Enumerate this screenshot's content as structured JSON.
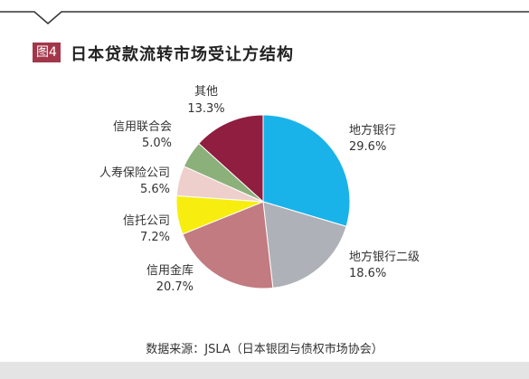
{
  "figure": {
    "badge": "图4",
    "title": "日本贷款流转市场受让方结构",
    "source": "数据来源：JSLA（日本银团与债权市场协会）"
  },
  "chart_data": {
    "type": "pie",
    "title": "日本贷款流转市场受让方结构",
    "unit": "%",
    "slices": [
      {
        "label": "地方银行",
        "value": 29.6,
        "pct_text": "29.6%",
        "color": "#19b3ea"
      },
      {
        "label": "地方银行二级",
        "value": 18.6,
        "pct_text": "18.6%",
        "color": "#aeb1b7"
      },
      {
        "label": "信用金库",
        "value": 20.7,
        "pct_text": "20.7%",
        "color": "#c27b80"
      },
      {
        "label": "信托公司",
        "value": 7.2,
        "pct_text": "7.2%",
        "color": "#f7ee0f"
      },
      {
        "label": "人寿保险公司",
        "value": 5.6,
        "pct_text": "5.6%",
        "color": "#efcfcb"
      },
      {
        "label": "信用联合会",
        "value": 5.0,
        "pct_text": "5.0%",
        "color": "#8bb07a"
      },
      {
        "label": "其他",
        "value": 13.3,
        "pct_text": "13.3%",
        "color": "#8f1e40"
      }
    ]
  }
}
